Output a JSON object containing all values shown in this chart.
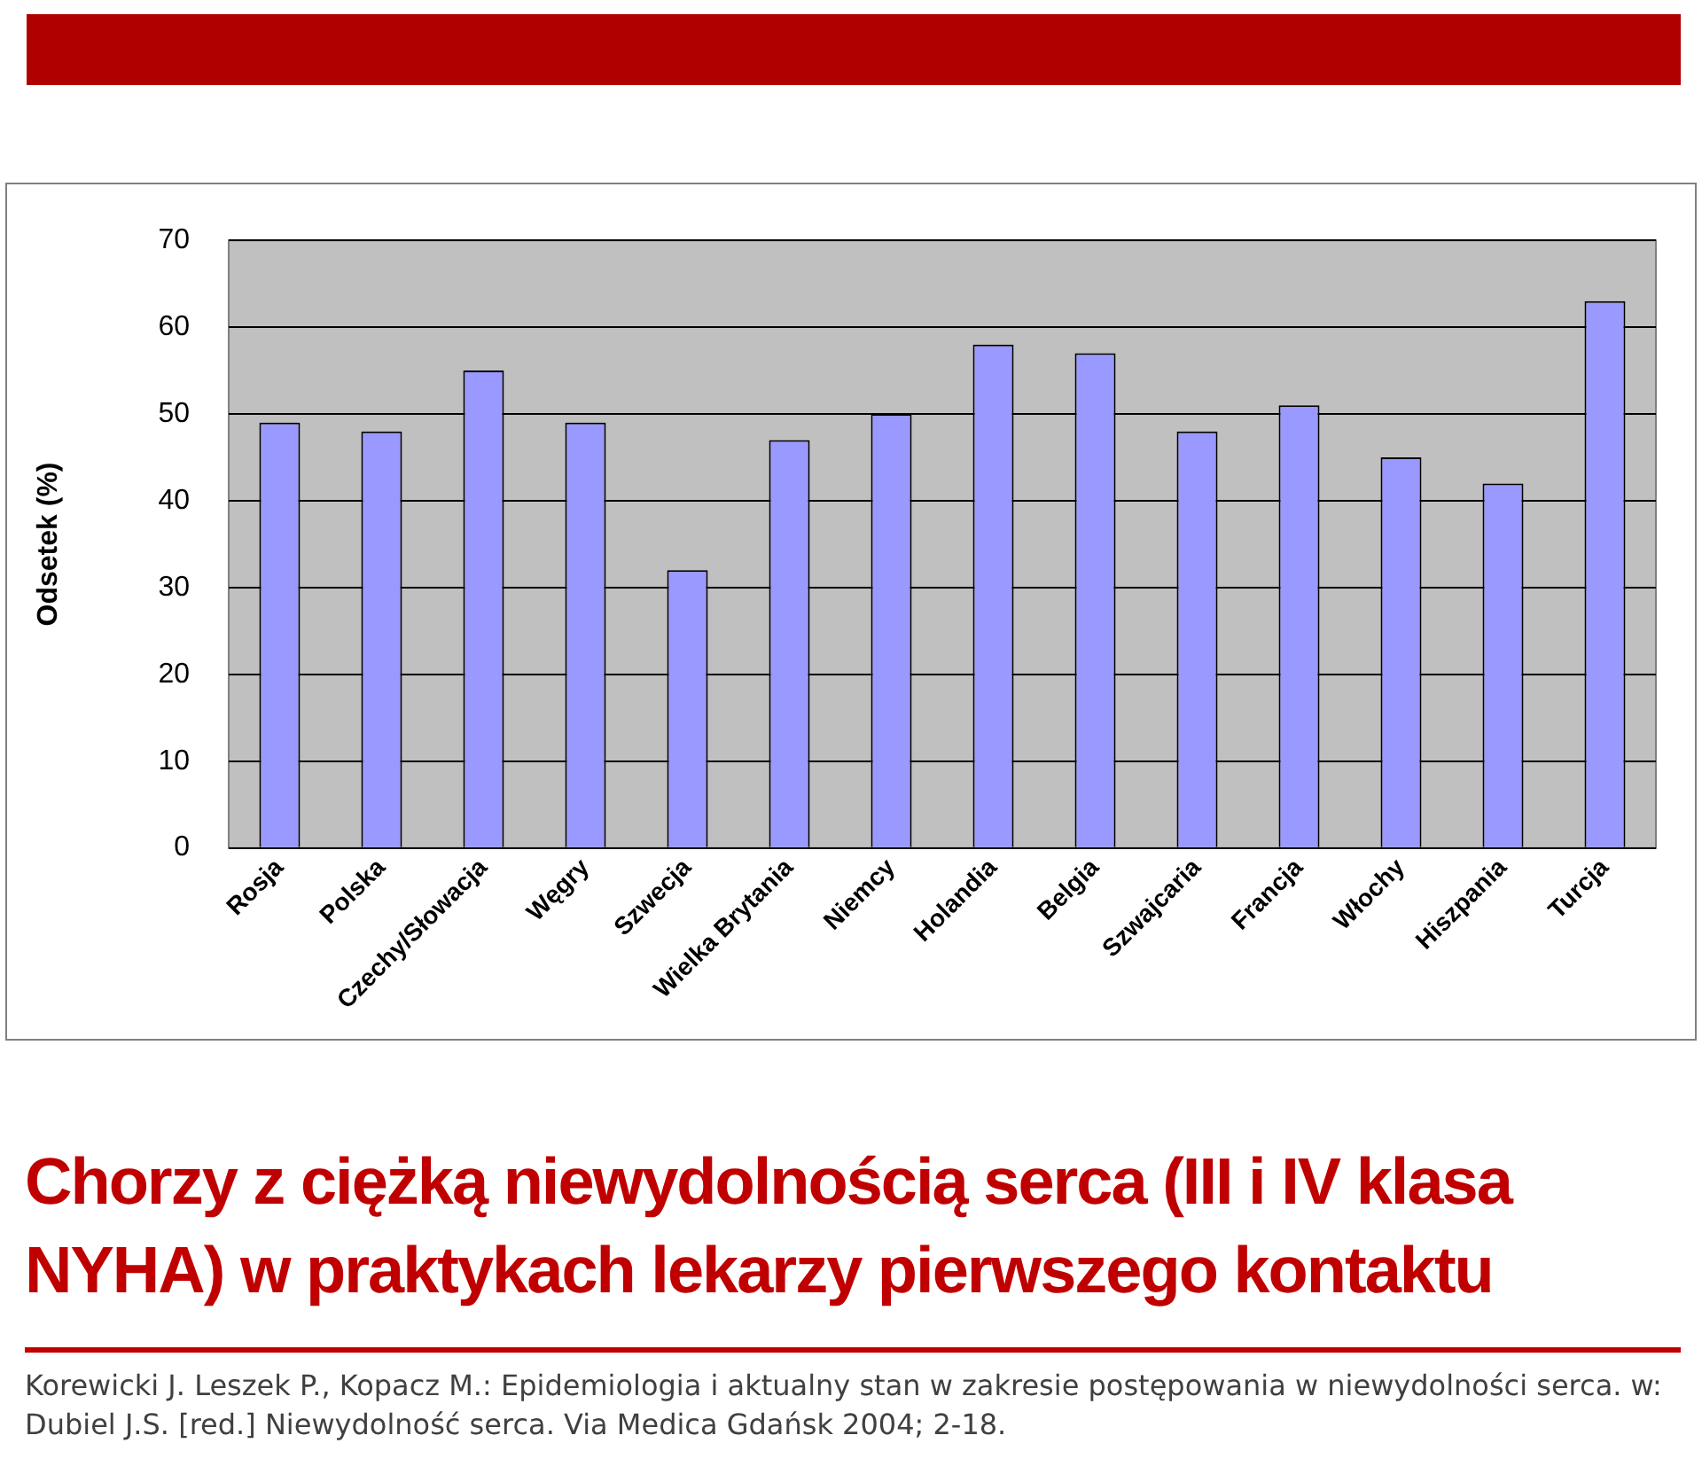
{
  "chart_data": {
    "type": "bar",
    "title": "Chorzy z ciężką niewydolnością serca (III i IV klasa NYHA) w praktykach lekarzy pierwszego kontaktu",
    "ylabel": "Odsetek (%)",
    "categories": [
      "Rosja",
      "Polska",
      "Czechy/Słowacja",
      "Węgry",
      "Szwecja",
      "Wielka Brytania",
      "Niemcy",
      "Holandia",
      "Belgia",
      "Szwajcaria",
      "Francja",
      "Włochy",
      "Hiszpania",
      "Turcja"
    ],
    "values": [
      49,
      48,
      55,
      49,
      32,
      47,
      50,
      58,
      57,
      48,
      51,
      45,
      42,
      63
    ],
    "color": "#9999ff",
    "ylim": [
      0,
      70
    ],
    "yticks": [
      0,
      10,
      20,
      30,
      40,
      50,
      60,
      70
    ],
    "grid": "y",
    "legend": false,
    "annotations": [
      "Korewicki J. Leszek P., Kopacz M.: Epidemiologia i aktualny stan w zakresie postępowania w niewydolności serca. w: Dubiel J.S. [red.] Niewydolność serca. Via Medica Gdańsk 2004; 2-18."
    ]
  }
}
